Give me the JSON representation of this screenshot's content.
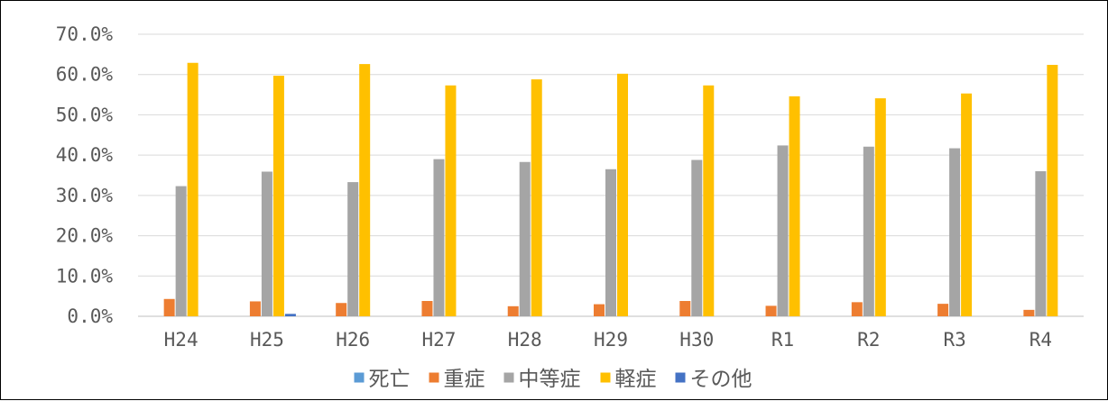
{
  "chart_data": {
    "type": "bar",
    "title": "",
    "xlabel": "",
    "ylabel": "",
    "ylim": [
      0,
      70
    ],
    "y_ticks": [
      "0.0%",
      "10.0%",
      "20.0%",
      "30.0%",
      "40.0%",
      "50.0%",
      "60.0%",
      "70.0%"
    ],
    "grid": true,
    "legend_position": "bottom",
    "categories": [
      "H24",
      "H25",
      "H26",
      "H27",
      "H28",
      "H29",
      "H30",
      "R1",
      "R2",
      "R3",
      "R4"
    ],
    "series": [
      {
        "name": "死亡",
        "color": "#5b9bd5",
        "values": [
          0.0,
          0.0,
          0.0,
          0.0,
          0.0,
          0.0,
          0.0,
          0.0,
          0.0,
          0.0,
          0.0
        ]
      },
      {
        "name": "重症",
        "color": "#ed7d31",
        "values": [
          4.3,
          3.7,
          3.3,
          3.8,
          2.5,
          3.0,
          3.8,
          2.6,
          3.5,
          3.1,
          1.6
        ]
      },
      {
        "name": "中等症",
        "color": "#a5a5a5",
        "values": [
          32.3,
          35.9,
          33.3,
          39.0,
          38.3,
          36.5,
          38.8,
          42.4,
          42.1,
          41.7,
          36.0
        ]
      },
      {
        "name": "軽症",
        "color": "#ffc000",
        "values": [
          62.9,
          59.7,
          62.6,
          57.3,
          58.8,
          60.2,
          57.3,
          54.6,
          54.1,
          55.3,
          62.4
        ]
      },
      {
        "name": "その他",
        "color": "#4472c4",
        "values": [
          0.0,
          0.6,
          0.0,
          0.0,
          0.0,
          0.0,
          0.0,
          0.0,
          0.0,
          0.0,
          0.0
        ]
      }
    ]
  }
}
